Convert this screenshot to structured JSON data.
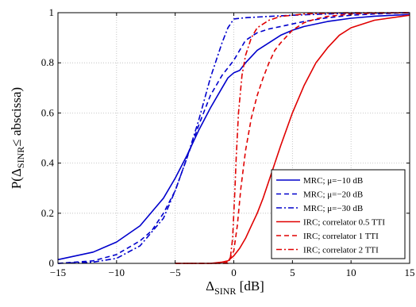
{
  "chart_data": {
    "type": "line",
    "title": "",
    "xlabel": {
      "main": "Δ",
      "sub": "SINR",
      "unit": " [dB]"
    },
    "ylabel": {
      "prefix": "P(Δ",
      "sub": "SINR",
      "suffix": "≤ abscissa)"
    },
    "xlim": [
      -15,
      15
    ],
    "ylim": [
      0,
      1
    ],
    "xticks": [
      -15,
      -10,
      -5,
      0,
      5,
      10,
      15
    ],
    "yticks": [
      0,
      0.2,
      0.4,
      0.6,
      0.8,
      1
    ],
    "xtick_labels": [
      "−15",
      "−10",
      "−5",
      "0",
      "5",
      "10",
      "15"
    ],
    "ytick_labels": [
      "0",
      "0.2",
      "0.4",
      "0.6",
      "0.8",
      "1"
    ],
    "grid": true,
    "legend_position": "bottom-right",
    "series": [
      {
        "name": "MRC; μ=−10 dB",
        "color": "#0000cc",
        "dash": "solid",
        "x": [
          -15,
          -12,
          -10,
          -8,
          -6,
          -5,
          -4,
          -3,
          -2,
          -1,
          -0.5,
          0,
          0.5,
          1,
          2,
          3,
          4,
          5,
          6,
          8,
          10,
          12,
          15
        ],
        "y": [
          0.015,
          0.045,
          0.085,
          0.15,
          0.26,
          0.34,
          0.43,
          0.53,
          0.62,
          0.7,
          0.74,
          0.76,
          0.77,
          0.8,
          0.85,
          0.88,
          0.91,
          0.93,
          0.945,
          0.965,
          0.978,
          0.986,
          0.993
        ]
      },
      {
        "name": "MRC; μ=−20 dB",
        "color": "#0000cc",
        "dash": "dashed",
        "x": [
          -15,
          -12,
          -10,
          -8,
          -7,
          -6,
          -5,
          -4,
          -3,
          -2,
          -1,
          -0.5,
          0,
          0.5,
          1,
          2,
          3,
          4,
          5,
          6,
          8,
          10,
          12,
          15
        ],
        "y": [
          0,
          0.01,
          0.035,
          0.09,
          0.13,
          0.2,
          0.29,
          0.42,
          0.55,
          0.67,
          0.75,
          0.78,
          0.81,
          0.85,
          0.89,
          0.92,
          0.935,
          0.945,
          0.955,
          0.965,
          0.98,
          0.99,
          0.995,
          1.0
        ]
      },
      {
        "name": "MRC; μ=−30 dB",
        "color": "#0000cc",
        "dash": "dashdot",
        "x": [
          -15,
          -12,
          -10,
          -8,
          -6,
          -5,
          -4,
          -3,
          -2,
          -1,
          -0.5,
          0,
          1,
          3,
          5,
          8,
          10,
          15
        ],
        "y": [
          0,
          0.005,
          0.02,
          0.07,
          0.18,
          0.29,
          0.42,
          0.57,
          0.74,
          0.88,
          0.94,
          0.975,
          0.98,
          0.985,
          0.99,
          0.995,
          0.998,
          1.0
        ]
      },
      {
        "name": "IRC; correlator 0.5 TTI",
        "color": "#e00000",
        "dash": "solid",
        "x": [
          -5,
          -2,
          -1,
          -0.5,
          0,
          0.5,
          1,
          1.5,
          2,
          2.5,
          3,
          3.5,
          4,
          5,
          6,
          7,
          8,
          9,
          10,
          12,
          15
        ],
        "y": [
          0,
          0,
          0.005,
          0.01,
          0.03,
          0.06,
          0.1,
          0.15,
          0.2,
          0.26,
          0.33,
          0.4,
          0.47,
          0.6,
          0.71,
          0.8,
          0.86,
          0.91,
          0.94,
          0.97,
          0.99
        ]
      },
      {
        "name": "IRC; correlator 1 TTI",
        "color": "#e00000",
        "dash": "dashed",
        "x": [
          -5,
          -1,
          -0.5,
          0,
          0.3,
          0.6,
          1,
          1.5,
          2,
          2.5,
          3,
          3.5,
          4,
          5,
          6,
          7,
          8,
          10,
          12,
          15
        ],
        "y": [
          0,
          0,
          0.005,
          0.05,
          0.15,
          0.3,
          0.45,
          0.58,
          0.67,
          0.74,
          0.8,
          0.85,
          0.88,
          0.93,
          0.96,
          0.975,
          0.985,
          0.995,
          0.998,
          1.0
        ]
      },
      {
        "name": "IRC; correlator 2 TTI",
        "color": "#e00000",
        "dash": "dashdot",
        "x": [
          -5,
          -0.5,
          -0.3,
          -0.1,
          0.1,
          0.2,
          0.4,
          0.7,
          1,
          1.5,
          2,
          3,
          4,
          5,
          6,
          8,
          10,
          15
        ],
        "y": [
          0,
          0,
          0.02,
          0.1,
          0.3,
          0.42,
          0.6,
          0.75,
          0.83,
          0.9,
          0.94,
          0.97,
          0.985,
          0.99,
          0.995,
          0.998,
          1.0,
          1.0
        ]
      }
    ]
  }
}
